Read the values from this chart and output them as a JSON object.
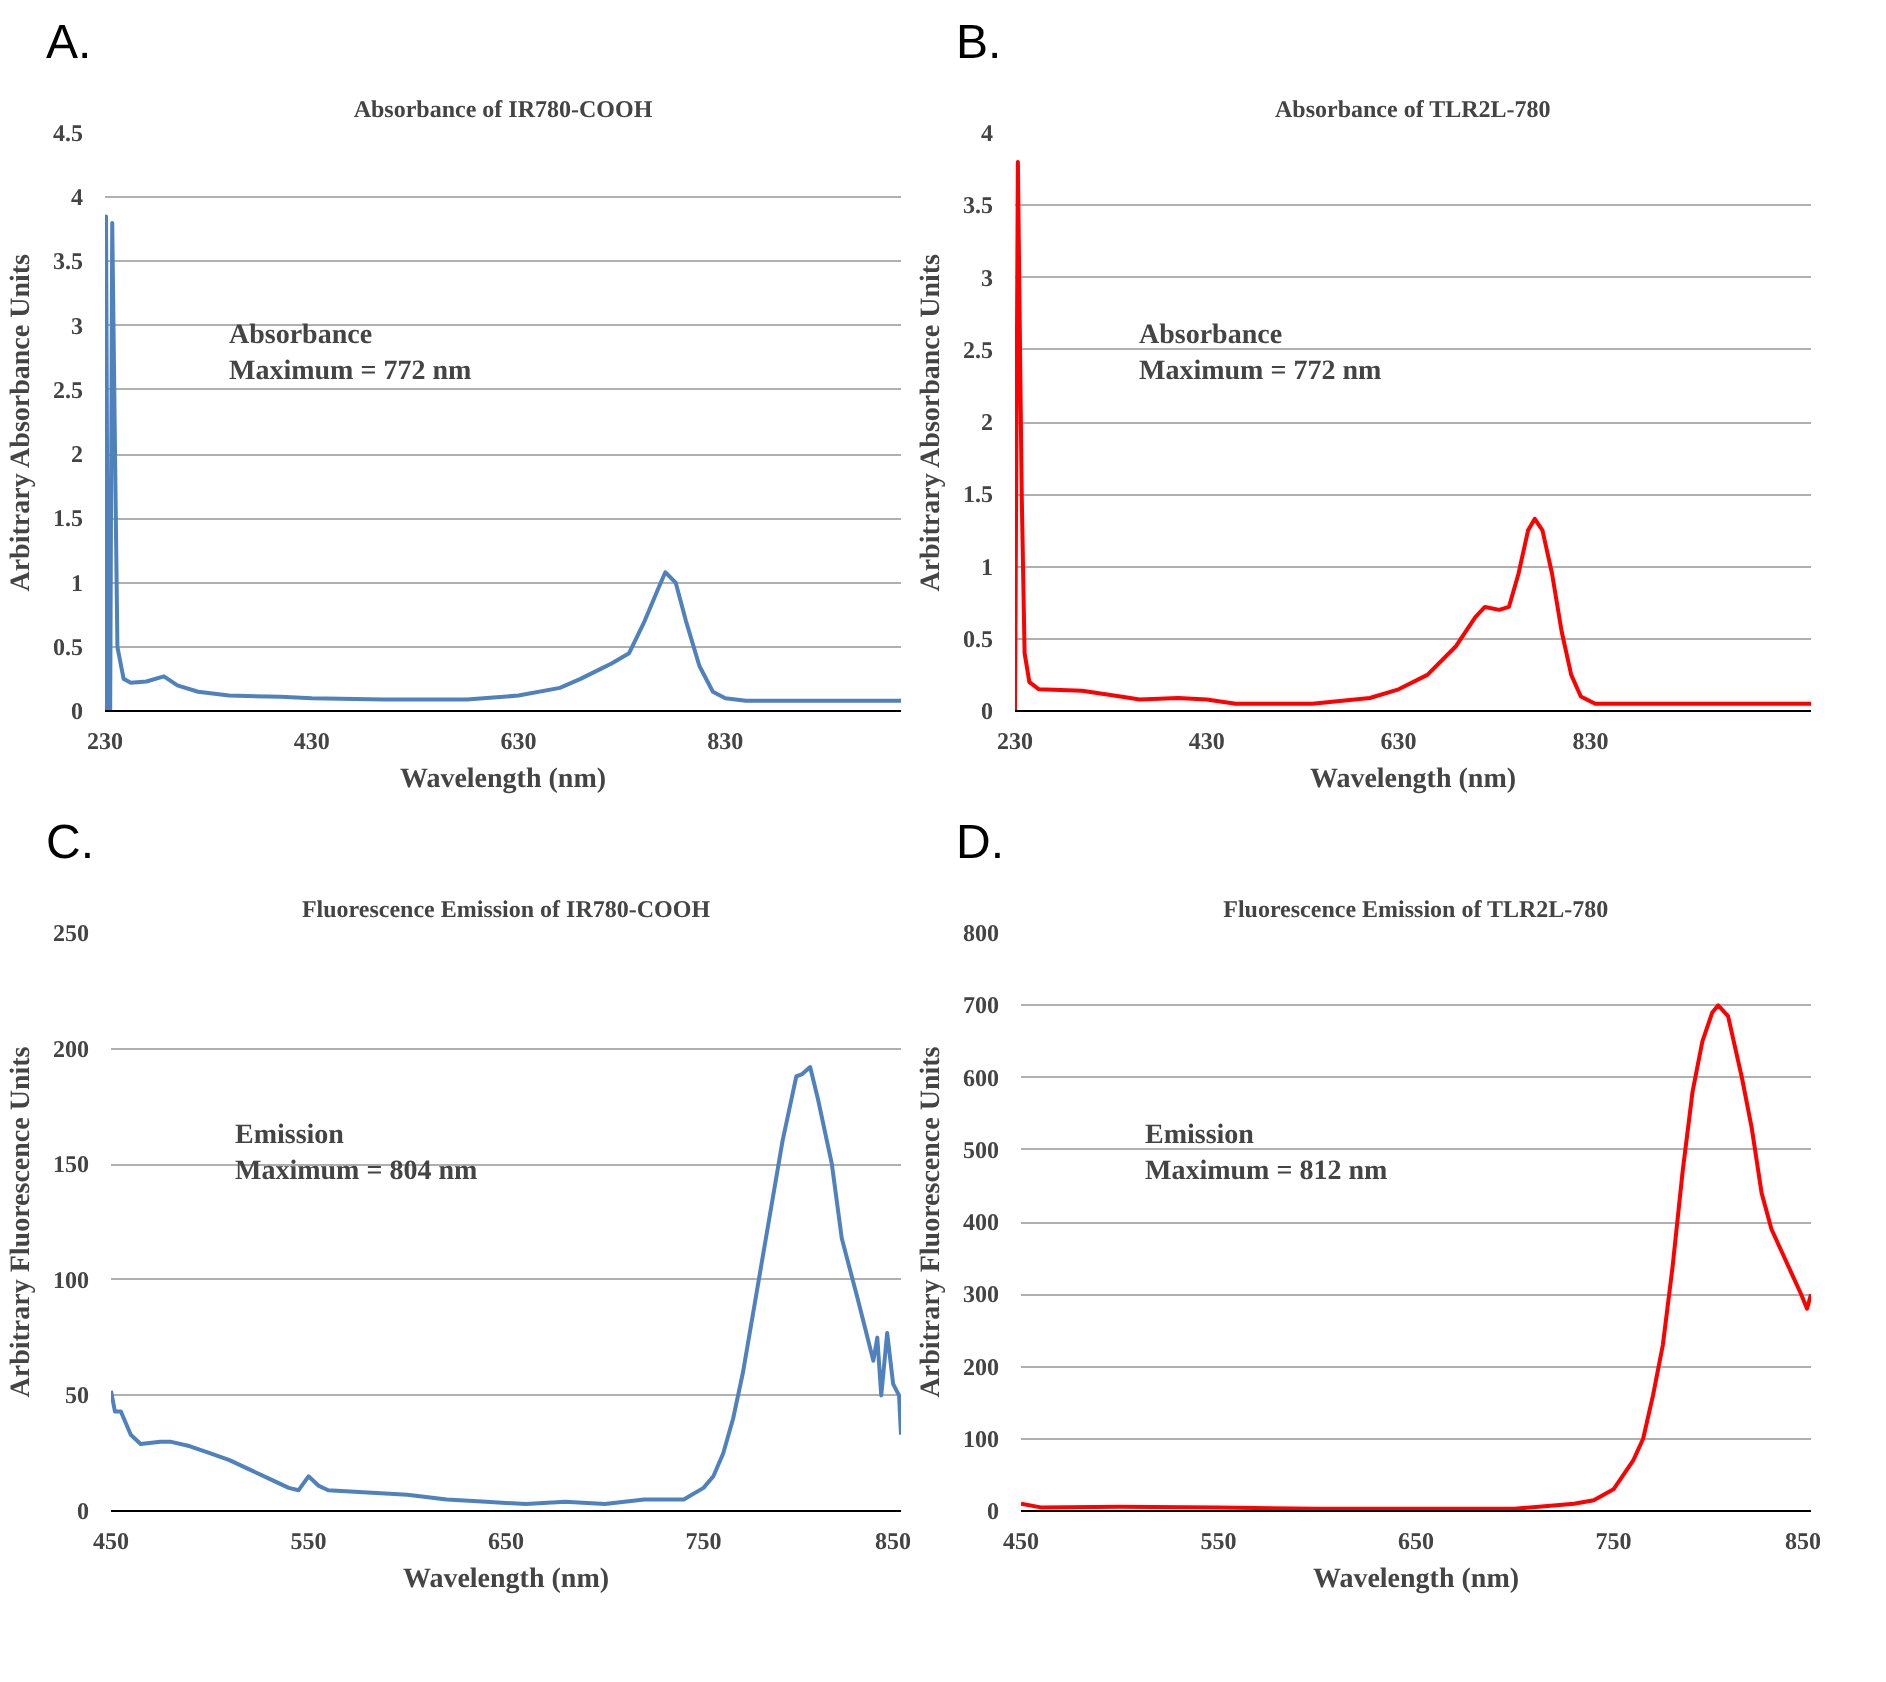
{
  "chart_data": [
    {
      "type": "line",
      "title": "Absorbance of IR780-COOH",
      "xlabel": "Wavelength (nm)",
      "ylabel": "Arbitrary Absorbance Units",
      "annotations": [
        "A.",
        "Absorbance\nMaximum = 772 nm"
      ],
      "xlim": [
        230,
        1000
      ],
      "xticks": [
        230,
        430,
        630,
        830
      ],
      "ylim": [
        0,
        4.5
      ],
      "yticks": [
        0,
        0.5,
        1,
        1.5,
        2,
        2.5,
        3,
        3.5,
        4,
        4.5
      ],
      "grid": "y",
      "marker": "none",
      "line_style": "solid",
      "series": [
        {
          "color": "#4f81bd",
          "x": [
            230,
            231,
            233,
            235,
            237,
            242,
            248,
            255,
            270,
            287,
            300,
            320,
            350,
            400,
            430,
            500,
            580,
            630,
            670,
            690,
            710,
            720,
            737,
            752,
            765,
            772,
            782,
            792,
            805,
            818,
            830,
            850,
            1000
          ],
          "values": [
            0,
            3.85,
            0,
            0,
            3.8,
            0.5,
            0.25,
            0.22,
            0.23,
            0.27,
            0.2,
            0.15,
            0.12,
            0.11,
            0.1,
            0.09,
            0.09,
            0.12,
            0.18,
            0.25,
            0.33,
            0.37,
            0.45,
            0.7,
            0.95,
            1.08,
            1.0,
            0.7,
            0.35,
            0.15,
            0.1,
            0.08,
            0.08
          ]
        }
      ]
    },
    {
      "type": "line",
      "title": "Absorbance of TLR2L-780",
      "xlabel": "Wavelength (nm)",
      "ylabel": "Arbitrary Absorbance Units",
      "annotations": [
        "B.",
        "Absorbance\nMaximum = 772 nm"
      ],
      "xlim": [
        230,
        1060
      ],
      "xticks": [
        230,
        430,
        630,
        830
      ],
      "ylim": [
        0,
        4
      ],
      "yticks": [
        0,
        0.5,
        1,
        1.5,
        2,
        2.5,
        3,
        3.5,
        4
      ],
      "grid": "y",
      "marker": "none",
      "line_style": "solid",
      "series": [
        {
          "color": "#ff0000",
          "x": [
            230,
            233,
            237,
            240,
            245,
            255,
            300,
            340,
            360,
            400,
            430,
            460,
            540,
            600,
            630,
            660,
            690,
            710,
            720,
            735,
            745,
            755,
            765,
            772,
            780,
            790,
            800,
            810,
            820,
            835,
            1060
          ],
          "values": [
            0,
            3.8,
            1.5,
            0.4,
            0.2,
            0.15,
            0.14,
            0.1,
            0.08,
            0.09,
            0.08,
            0.05,
            0.05,
            0.09,
            0.15,
            0.25,
            0.45,
            0.65,
            0.72,
            0.7,
            0.72,
            0.95,
            1.25,
            1.33,
            1.25,
            0.95,
            0.55,
            0.25,
            0.1,
            0.05,
            0.05
          ]
        }
      ]
    },
    {
      "type": "line",
      "title": "Fluorescence Emission of IR780-COOH",
      "xlabel": "Wavelength (nm)",
      "ylabel": "Arbitrary Fluorescence Units",
      "annotations": [
        "C.",
        "Emission\nMaximum = 804 nm"
      ],
      "xlim": [
        450,
        850
      ],
      "xticks": [
        450,
        550,
        650,
        750,
        850
      ],
      "ylim": [
        0,
        250
      ],
      "yticks": [
        0,
        50,
        100,
        150,
        200,
        250
      ],
      "grid": "y",
      "marker": "none",
      "line_style": "solid",
      "series": [
        {
          "color": "#4f81bd",
          "x": [
            450,
            452,
            455,
            460,
            465,
            475,
            480,
            490,
            500,
            510,
            520,
            530,
            540,
            545,
            550,
            555,
            560,
            580,
            600,
            620,
            640,
            660,
            680,
            700,
            710,
            720,
            740,
            750,
            755,
            760,
            765,
            770,
            780,
            790,
            797,
            800,
            804,
            808,
            815,
            820,
            828,
            836,
            838,
            840,
            843,
            846,
            849,
            850
          ],
          "values": [
            52,
            43,
            43,
            33,
            29,
            30,
            30,
            28,
            25,
            22,
            18,
            14,
            10,
            9,
            15,
            11,
            9,
            8,
            7,
            5,
            4,
            3,
            4,
            3,
            4,
            5,
            5,
            10,
            15,
            25,
            40,
            60,
            110,
            160,
            188,
            189,
            192,
            178,
            150,
            118,
            92,
            65,
            75,
            50,
            77,
            55,
            50,
            33
          ]
        }
      ]
    },
    {
      "type": "line",
      "title": "Fluorescence Emission of TLR2L-780",
      "xlabel": "Wavelength (nm)",
      "ylabel": "Arbitrary Fluorescence Units",
      "annotations": [
        "D.",
        "Emission\nMaximum = 812 nm"
      ],
      "xlim": [
        450,
        850
      ],
      "xticks": [
        450,
        550,
        650,
        750,
        850
      ],
      "ylim": [
        0,
        800
      ],
      "yticks": [
        0,
        100,
        200,
        300,
        400,
        500,
        600,
        700,
        800
      ],
      "grid": "y",
      "marker": "none",
      "line_style": "solid",
      "series": [
        {
          "color": "#ff0000",
          "x": [
            450,
            460,
            500,
            550,
            600,
            650,
            700,
            730,
            740,
            750,
            760,
            765,
            770,
            775,
            780,
            785,
            790,
            795,
            800,
            803,
            808,
            815,
            820,
            825,
            830,
            840,
            845,
            848,
            850
          ],
          "values": [
            10,
            5,
            6,
            5,
            3,
            3,
            3,
            10,
            15,
            30,
            70,
            100,
            160,
            230,
            340,
            470,
            580,
            650,
            690,
            700,
            685,
            600,
            530,
            440,
            390,
            330,
            300,
            280,
            300
          ]
        }
      ]
    }
  ]
}
